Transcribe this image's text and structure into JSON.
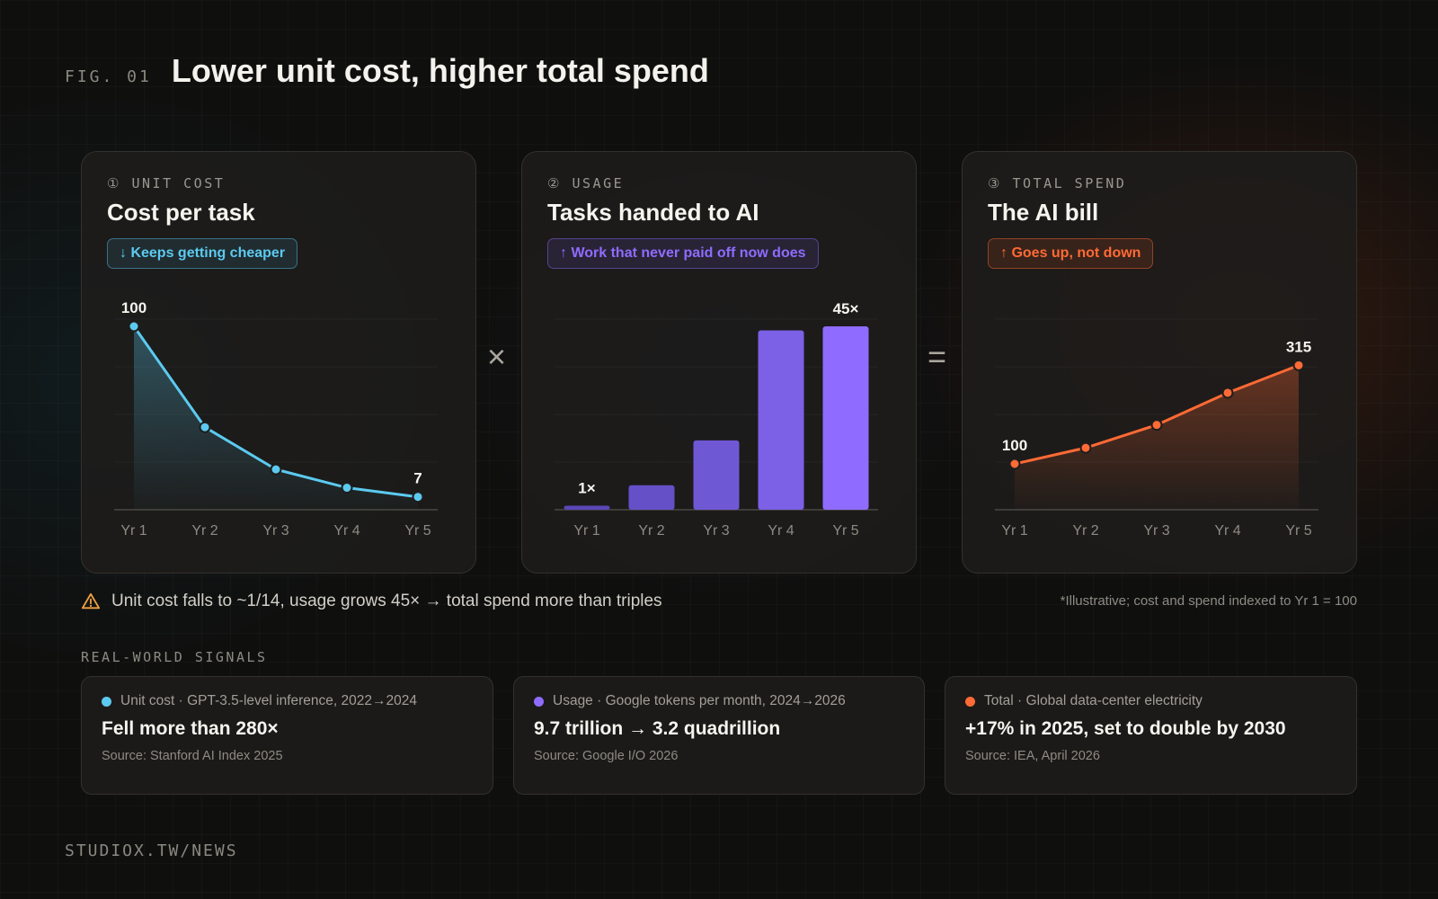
{
  "header": {
    "fig_label": "FIG. 01",
    "title": "Lower unit cost, higher total spend"
  },
  "operators": {
    "times": "×",
    "equals": "="
  },
  "colors": {
    "cyan": "#5ccaf0",
    "purple": "#8f6cff",
    "orange": "#ff6a35"
  },
  "cards": [
    {
      "kicker": "① UNIT COST",
      "title": "Cost per task",
      "badge": "↓ Keeps getting cheaper"
    },
    {
      "kicker": "② USAGE",
      "title": "Tasks handed to AI",
      "badge": "↑ Work that never paid off now does"
    },
    {
      "kicker": "③ TOTAL SPEND",
      "title": "The AI bill",
      "badge": "↑ Goes up, not down"
    }
  ],
  "chart_data": [
    {
      "type": "area",
      "title": "Cost per task",
      "categories": [
        "Yr 1",
        "Yr 2",
        "Yr 3",
        "Yr 4",
        "Yr 5"
      ],
      "values": [
        100,
        45,
        22,
        12,
        7
      ],
      "data_labels": [
        "100",
        "",
        "",
        "",
        "7"
      ],
      "ylim": [
        0,
        100
      ],
      "grid": true,
      "color": "#5ccaf0"
    },
    {
      "type": "bar",
      "title": "Tasks handed to AI",
      "categories": [
        "Yr 1",
        "Yr 2",
        "Yr 3",
        "Yr 4",
        "Yr 5"
      ],
      "values": [
        1,
        6,
        17,
        44,
        45
      ],
      "data_labels": [
        "1×",
        "",
        "",
        "",
        "45×"
      ],
      "ylim": [
        0,
        45
      ],
      "grid": true,
      "colors": [
        "#5b47b8",
        "#6650c8",
        "#6f58d4",
        "#7c60e6",
        "#8f6cff"
      ]
    },
    {
      "type": "area",
      "title": "The AI bill",
      "categories": [
        "Yr 1",
        "Yr 2",
        "Yr 3",
        "Yr 4",
        "Yr 5"
      ],
      "values": [
        100,
        135,
        185,
        255,
        315
      ],
      "data_labels": [
        "100",
        "",
        "",
        "",
        "315"
      ],
      "ylim": [
        0,
        400
      ],
      "grid": true,
      "color": "#ff6a35"
    }
  ],
  "summary": {
    "warning_icon": "warning-triangle-icon",
    "text": "Unit cost falls to ~1/14, usage grows 45× → total spend more than triples",
    "footnote": "*Illustrative; cost and spend indexed to Yr 1 = 100"
  },
  "signals": {
    "section_label": "REAL-WORLD SIGNALS",
    "items": [
      {
        "head": "Unit cost · GPT-3.5-level inference, 2022→2024",
        "value": "Fell more than 280×",
        "source": "Source: Stanford AI Index 2025",
        "color": "#5ccaf0"
      },
      {
        "head": "Usage · Google tokens per month, 2024→2026",
        "value": "9.7 trillion → 3.2 quadrillion",
        "source": "Source: Google I/O 2026",
        "color": "#8f6cff"
      },
      {
        "head": "Total · Global data-center electricity",
        "value": "+17% in 2025, set to double by 2030",
        "source": "Source: IEA, April 2026",
        "color": "#ff6a35"
      }
    ]
  },
  "footer": {
    "brand": "STUDIOX.TW/NEWS"
  }
}
